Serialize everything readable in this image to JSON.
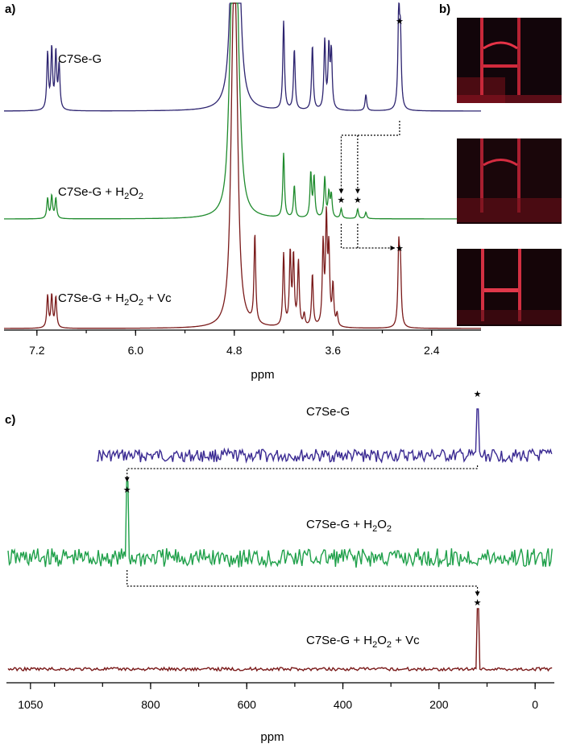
{
  "panels": {
    "a": "a)",
    "b": "b)",
    "c": "c)"
  },
  "chart_data": [
    {
      "type": "line",
      "panel": "a",
      "xlabel": "ppm",
      "xlim": [
        7.6,
        1.8
      ],
      "xticks": [
        7.2,
        6.0,
        4.8,
        3.6,
        2.4
      ],
      "xtick_labels": [
        "7.2",
        "6.0",
        "4.8",
        "3.6",
        "2.4"
      ],
      "series": [
        {
          "name": "C7Se-G",
          "label": "C7Se-G",
          "color": "#2d2470",
          "peaks": [
            [
              7.07,
              70
            ],
            [
              7.02,
              75
            ],
            [
              6.97,
              70
            ],
            [
              6.93,
              55
            ],
            [
              4.83,
              55
            ],
            [
              4.81,
              140
            ],
            [
              4.79,
              260
            ],
            [
              4.77,
              140
            ],
            [
              4.73,
              45
            ],
            [
              4.2,
              110
            ],
            [
              4.07,
              75
            ],
            [
              3.85,
              80
            ],
            [
              3.7,
              85
            ],
            [
              3.65,
              75
            ],
            [
              3.62,
              70
            ],
            [
              3.2,
              20
            ],
            [
              2.8,
              120
            ],
            [
              2.78,
              85
            ]
          ],
          "marked_peak_ppm": 2.79
        },
        {
          "name": "C7Se-G + H2O2",
          "label": "C7Se-G + H",
          "label_sub": "2",
          "label_tail": "O",
          "label_sub2": "2",
          "color": "#1f8b2d",
          "peaks": [
            [
              7.07,
              25
            ],
            [
              7.02,
              28
            ],
            [
              6.97,
              25
            ],
            [
              4.86,
              45
            ],
            [
              4.83,
              80
            ],
            [
              4.81,
              190
            ],
            [
              4.79,
              220
            ],
            [
              4.77,
              120
            ],
            [
              4.73,
              35
            ],
            [
              4.2,
              80
            ],
            [
              4.07,
              40
            ],
            [
              3.87,
              55
            ],
            [
              3.83,
              50
            ],
            [
              3.7,
              50
            ],
            [
              3.65,
              30
            ],
            [
              3.62,
              28
            ],
            [
              3.5,
              12
            ],
            [
              3.3,
              12
            ],
            [
              3.2,
              8
            ]
          ],
          "marked_peak_ppm": [
            3.5,
            3.3
          ]
        },
        {
          "name": "C7Se-G + H2O2 + Vc",
          "label": "C7Se-G + H",
          "label_sub": "2",
          "label_tail": "O",
          "label_sub2": "2",
          "label_end": " + Vc",
          "color": "#7a1a1a",
          "peaks": [
            [
              7.07,
              40
            ],
            [
              7.02,
              40
            ],
            [
              6.97,
              38
            ],
            [
              4.83,
              80
            ],
            [
              4.81,
              200
            ],
            [
              4.79,
              180
            ],
            [
              4.77,
              120
            ],
            [
              4.55,
              110
            ],
            [
              4.2,
              90
            ],
            [
              4.12,
              90
            ],
            [
              4.08,
              85
            ],
            [
              4.02,
              80
            ],
            [
              3.95,
              15
            ],
            [
              3.85,
              65
            ],
            [
              3.72,
              100
            ],
            [
              3.68,
              130
            ],
            [
              3.65,
              90
            ],
            [
              3.6,
              50
            ],
            [
              3.55,
              15
            ],
            [
              2.8,
              95
            ],
            [
              2.78,
              70
            ]
          ],
          "marked_peak_ppm": 2.79
        }
      ]
    },
    {
      "type": "line",
      "panel": "c",
      "xlabel": "ppm",
      "xlim": [
        1100,
        -40
      ],
      "xticks": [
        1050,
        800,
        600,
        400,
        200,
        0
      ],
      "xtick_labels": [
        "1050",
        "800",
        "600",
        "400",
        "200",
        "0"
      ],
      "series": [
        {
          "name": "C7Se-G",
          "label": "C7Se-G",
          "color": "#3a2a92",
          "peak_ppm": 120,
          "peak_height": 58,
          "noise": 8
        },
        {
          "name": "C7Se-G + H2O2",
          "label": "C7Se-G + H",
          "label_sub": "2",
          "label_tail": "O",
          "label_sub2": "2",
          "color": "#1fa04a",
          "peak_ppm": 849,
          "peak_height": 95,
          "noise": 12
        },
        {
          "name": "C7Se-G + H2O2 + Vc",
          "label": "C7Se-G + H",
          "label_sub": "2",
          "label_tail": "O",
          "label_sub2": "2",
          "label_end": " + Vc",
          "color": "#7a1a1a",
          "peak_ppm": 120,
          "peak_height": 75,
          "noise": 2
        }
      ]
    }
  ],
  "marker_glyph": "★"
}
